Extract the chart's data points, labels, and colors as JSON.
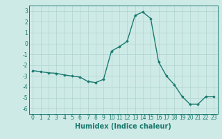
{
  "x": [
    0,
    1,
    2,
    3,
    4,
    5,
    6,
    7,
    8,
    9,
    10,
    11,
    12,
    13,
    14,
    15,
    16,
    17,
    18,
    19,
    20,
    21,
    22,
    23
  ],
  "y": [
    -2.5,
    -2.6,
    -2.7,
    -2.75,
    -2.9,
    -3.0,
    -3.1,
    -3.5,
    -3.6,
    -3.3,
    -0.7,
    -0.3,
    0.2,
    2.6,
    2.9,
    2.3,
    -1.7,
    -3.0,
    -3.8,
    -4.9,
    -5.6,
    -5.6,
    -4.9,
    -4.9
  ],
  "line_color": "#1a7a6e",
  "marker": "D",
  "marker_size": 1.8,
  "line_width": 1.0,
  "xlabel": "Humidex (Indice chaleur)",
  "xlabel_fontsize": 7,
  "xlim": [
    -0.5,
    23.5
  ],
  "ylim": [
    -6.5,
    3.5
  ],
  "yticks": [
    -6,
    -5,
    -4,
    -3,
    -2,
    -1,
    0,
    1,
    2,
    3
  ],
  "xticks": [
    0,
    1,
    2,
    3,
    4,
    5,
    6,
    7,
    8,
    9,
    10,
    11,
    12,
    13,
    14,
    15,
    16,
    17,
    18,
    19,
    20,
    21,
    22,
    23
  ],
  "tick_fontsize": 5.5,
  "bg_color": "#ceeae7",
  "grid_color": "#afd4d0",
  "spine_color": "#1a7a6e",
  "text_color": "#1a7a6e"
}
